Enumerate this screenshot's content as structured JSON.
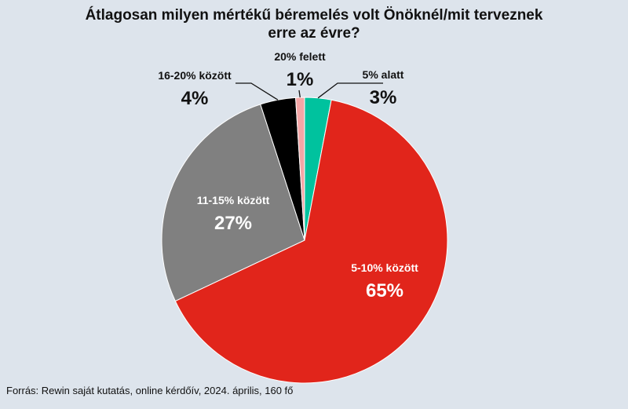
{
  "chart_data": {
    "type": "pie",
    "title_lines": [
      "Átlagosan milyen mértékű béremelés volt Önöknél/mit terveznek",
      "erre az évre?"
    ],
    "slices": [
      {
        "label": "5% alatt",
        "value": 3,
        "value_label": "3%",
        "color": "#00c29e"
      },
      {
        "label": "5-10% között",
        "value": 65,
        "value_label": "65%",
        "color": "#e1251b"
      },
      {
        "label": "11-15% között",
        "value": 27,
        "value_label": "27%",
        "color": "#808080"
      },
      {
        "label": "16-20% között",
        "value": 4,
        "value_label": "4%",
        "color": "#000000"
      },
      {
        "label": "20% felett",
        "value": 1,
        "value_label": "1%",
        "color": "#f4a6a6"
      }
    ],
    "start": "12 o'clock",
    "direction": "clockwise",
    "legend": "none"
  },
  "source": "Forrás: Rewin saját kutatás, online kérdőív, 2024. április, 160 fő"
}
